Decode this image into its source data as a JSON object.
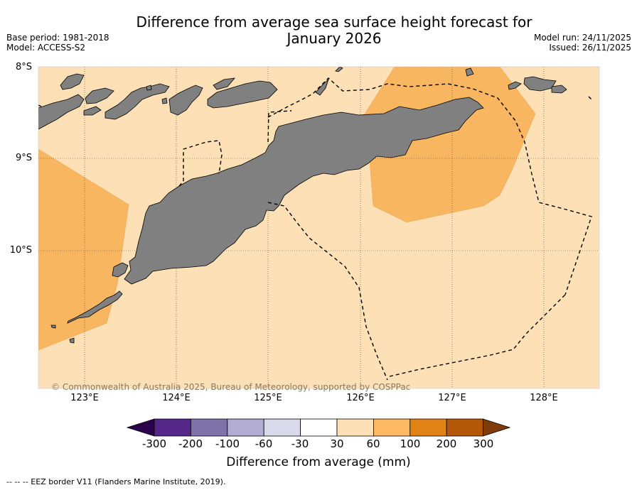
{
  "header": {
    "title_line1": "Difference from average sea surface height forecast for",
    "title_line2": "January 2026",
    "base_period": "Base period: 1981-2018",
    "model": "Model: ACCESS-S2",
    "model_run": "Model run: 24/11/2025",
    "issued": "Issued: 26/11/2025"
  },
  "map": {
    "lat_labels": [
      "8°S",
      "9°S",
      "10°S"
    ],
    "lon_labels": [
      "123°E",
      "124°E",
      "125°E",
      "126°E",
      "127°E",
      "128°E"
    ],
    "copyright": "© Commonwealth of Australia 2025, Bureau of Meteorology, supported by COSPPac",
    "land_color": "#808080",
    "background_class_color": "#fde0b5",
    "anomaly_class_color": "#f9b661",
    "eez_line_style": "dashed"
  },
  "colorbar": {
    "title": "Difference from average (mm)",
    "ticks": [
      "-300",
      "-200",
      "-100",
      "-60",
      "-30",
      "30",
      "60",
      "100",
      "200",
      "300"
    ],
    "colors": [
      "#2d004b",
      "#542788",
      "#8073ac",
      "#b2abd2",
      "#d8daeb",
      "#ffffff",
      "#fee0b6",
      "#fdb863",
      "#e08214",
      "#b35806",
      "#7f3b08"
    ]
  },
  "footnote": "--  --  -- EEZ border V11 (Flanders Marine Institute, 2019)."
}
